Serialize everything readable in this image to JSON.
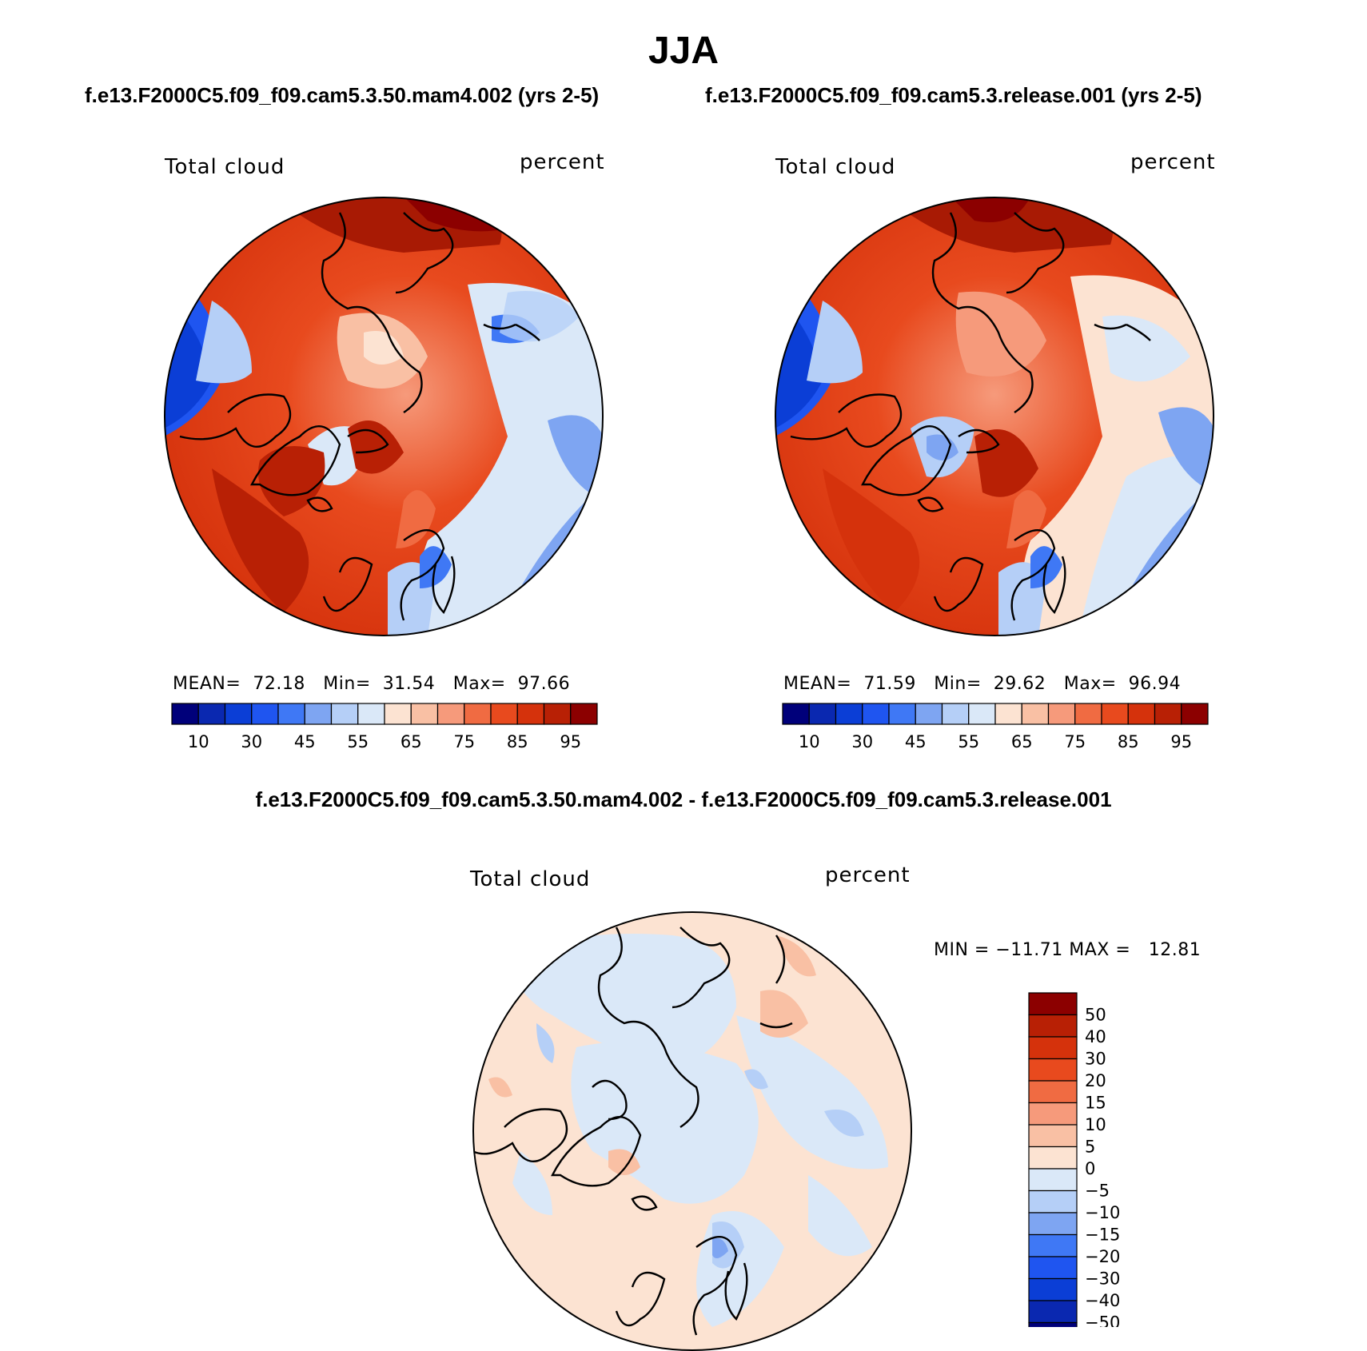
{
  "title": "JJA",
  "panels": [
    {
      "case": "f.e13.F2000C5.f09_f09.cam5.3.50.mam4.002 (yrs 2-5)",
      "variable": "Total cloud",
      "units": "percent",
      "stats": {
        "mean_label": "MEAN=",
        "mean": "72.18",
        "min_label": "Min=",
        "min": "31.54",
        "max_label": "Max=",
        "max": "97.66"
      }
    },
    {
      "case": "f.e13.F2000C5.f09_f09.cam5.3.release.001 (yrs 2-5)",
      "variable": "Total cloud",
      "units": "percent",
      "stats": {
        "mean_label": "MEAN=",
        "mean": "71.59",
        "min_label": "Min=",
        "min": "29.62",
        "max_label": "Max=",
        "max": "96.94"
      }
    }
  ],
  "difference": {
    "title": "f.e13.F2000C5.f09_f09.cam5.3.50.mam4.002 - f.e13.F2000C5.f09_f09.cam5.3.release.001",
    "variable": "Total cloud",
    "units": "percent",
    "minmax": "MIN = −11.71 MAX =   12.81"
  },
  "chart_data": [
    {
      "type": "heatmap",
      "projection": "north polar stereographic",
      "colorbar": {
        "orientation": "horizontal",
        "tick_labels": [
          "10",
          "30",
          "45",
          "55",
          "65",
          "75",
          "85",
          "95"
        ],
        "colors": [
          "#00007a",
          "#0a28b0",
          "#0b3ed6",
          "#1f55f0",
          "#3f78f5",
          "#7ea5f2",
          "#b5cff7",
          "#dae8f8",
          "#fce3d2",
          "#f9c0a4",
          "#f69a7b",
          "#f06b42",
          "#e84a1e",
          "#d5320c",
          "#b82005",
          "#8c0000"
        ]
      },
      "summary": {
        "mean": 72.18,
        "min": 31.54,
        "max": 97.66
      }
    },
    {
      "type": "heatmap",
      "projection": "north polar stereographic",
      "colorbar": {
        "orientation": "horizontal",
        "tick_labels": [
          "10",
          "30",
          "45",
          "55",
          "65",
          "75",
          "85",
          "95"
        ],
        "colors": [
          "#00007a",
          "#0a28b0",
          "#0b3ed6",
          "#1f55f0",
          "#3f78f5",
          "#7ea5f2",
          "#b5cff7",
          "#dae8f8",
          "#fce3d2",
          "#f9c0a4",
          "#f69a7b",
          "#f06b42",
          "#e84a1e",
          "#d5320c",
          "#b82005",
          "#8c0000"
        ]
      },
      "summary": {
        "mean": 71.59,
        "min": 29.62,
        "max": 96.94
      }
    },
    {
      "type": "heatmap",
      "projection": "north polar stereographic",
      "colorbar": {
        "orientation": "vertical",
        "tick_labels": [
          "50",
          "40",
          "30",
          "20",
          "15",
          "10",
          "5",
          "0",
          "−5",
          "−10",
          "−15",
          "−20",
          "−30",
          "−40",
          "−50"
        ],
        "colors": [
          "#8c0000",
          "#b82005",
          "#d5320c",
          "#e84a1e",
          "#f06b42",
          "#f69a7b",
          "#f9c0a4",
          "#fce3d2",
          "#dae8f8",
          "#b5cff7",
          "#7ea5f2",
          "#3f78f5",
          "#1f55f0",
          "#0b3ed6",
          "#0a28b0",
          "#00007a"
        ]
      },
      "summary": {
        "min": -11.71,
        "max": 12.81
      }
    }
  ]
}
